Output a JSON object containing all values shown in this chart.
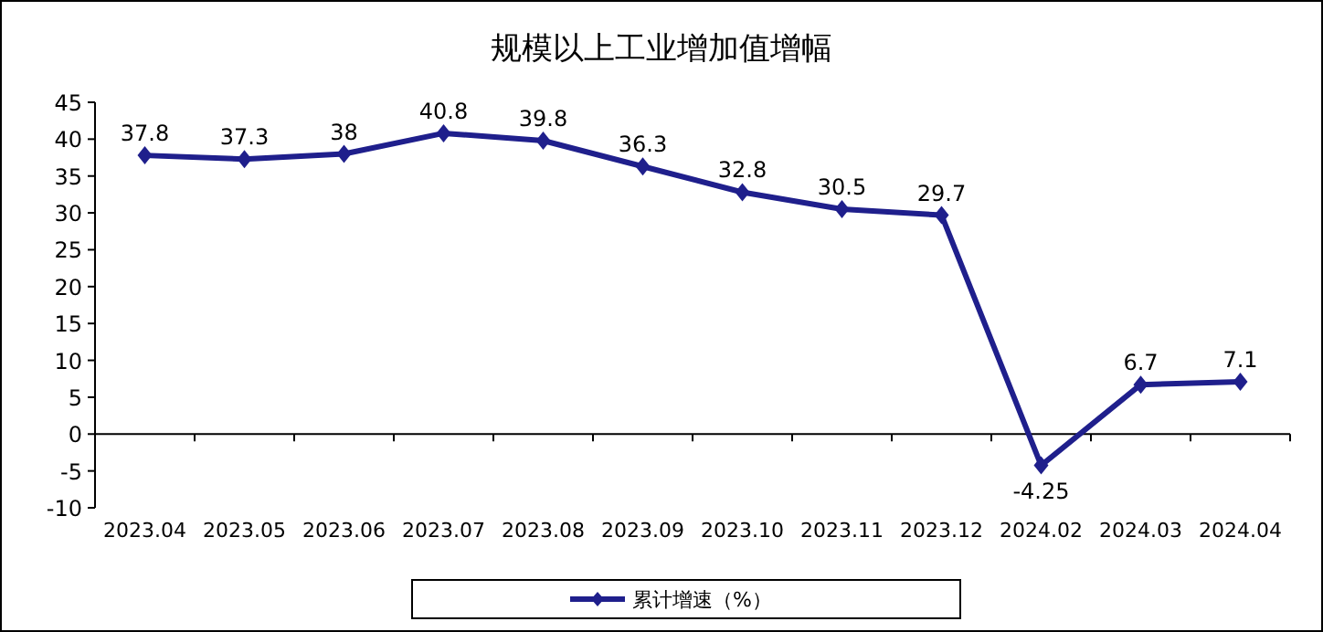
{
  "chart_data": {
    "type": "line",
    "title": "规模以上工业增加值增幅",
    "categories": [
      "2023.04",
      "2023.05",
      "2023.06",
      "2023.07",
      "2023.08",
      "2023.09",
      "2023.10",
      "2023.11",
      "2023.12",
      "2024.02",
      "2024.03",
      "2024.04"
    ],
    "series": [
      {
        "name": "累计增速（%）",
        "color": "#1f1f8c",
        "values": [
          37.8,
          37.3,
          38,
          40.8,
          39.8,
          36.3,
          32.8,
          30.5,
          29.7,
          -4.25,
          6.7,
          7.1
        ]
      }
    ],
    "ylim": [
      -10,
      45
    ],
    "yticks": [
      -10,
      -5,
      0,
      5,
      10,
      15,
      20,
      25,
      30,
      35,
      40,
      45
    ],
    "data_labels": true,
    "legend": "bottom",
    "marker": "diamond",
    "line_style": "solid"
  }
}
